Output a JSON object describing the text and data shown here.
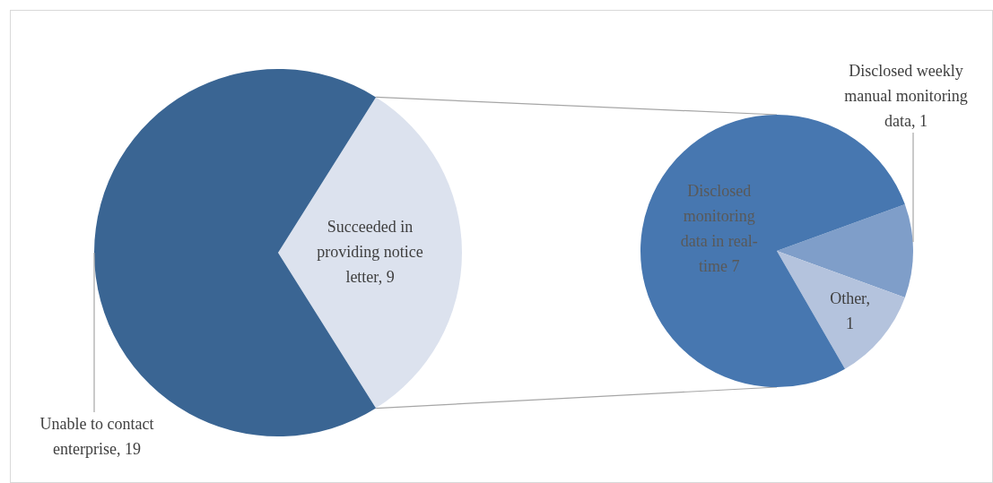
{
  "chart_data": [
    {
      "type": "pie",
      "categories": [
        "Succeeded in providing notice letter, 9",
        "Unable to contact enterprise, 19"
      ],
      "values": [
        9,
        19
      ],
      "colors": [
        "#dce2ee",
        "#3a6593"
      ]
    },
    {
      "type": "pie",
      "categories": [
        "Disclosed weekly manual monitoring data, 1",
        "Other, 1",
        "Disclosed monitoring data in real-time 7"
      ],
      "values": [
        1,
        1,
        7
      ],
      "colors": [
        "#7f9ec9",
        "#b4c3dd",
        "#4777b0"
      ]
    }
  ]
}
